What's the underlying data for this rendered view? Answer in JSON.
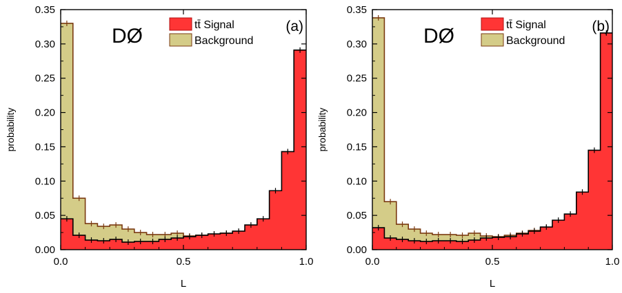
{
  "chart_data": [
    {
      "type": "histogram",
      "panel_label": "(a)",
      "watermark": "DØ",
      "xlabel": "L",
      "ylabel": "probability",
      "xlim": [
        0.0,
        1.0
      ],
      "ylim": [
        0.0,
        0.35
      ],
      "xticks": [
        "0.0",
        "0.5",
        "1.0"
      ],
      "yticks": [
        "0.00",
        "0.05",
        "0.10",
        "0.15",
        "0.20",
        "0.25",
        "0.30",
        "0.35"
      ],
      "bin_width": 0.05,
      "legend": {
        "position": "top-right",
        "entries": [
          "tt̄ Signal",
          "Background"
        ]
      },
      "series": [
        {
          "name": "Background",
          "color": "#d4cc88",
          "edge_color": "#7a3a10",
          "values": [
            0.33,
            0.075,
            0.038,
            0.034,
            0.036,
            0.03,
            0.025,
            0.022,
            0.022,
            0.024,
            0.02,
            0.021,
            0.022,
            0.024,
            0.026,
            0.029,
            0.032,
            0.038,
            0.039,
            0.037
          ]
        },
        {
          "name": "tt̄ Signal",
          "color": "#ff3535",
          "edge_color": "#000000",
          "values": [
            0.045,
            0.021,
            0.014,
            0.013,
            0.015,
            0.011,
            0.012,
            0.012,
            0.015,
            0.017,
            0.019,
            0.021,
            0.023,
            0.024,
            0.027,
            0.036,
            0.045,
            0.086,
            0.143,
            0.291
          ]
        }
      ]
    },
    {
      "type": "histogram",
      "panel_label": "(b)",
      "watermark": "DØ",
      "xlabel": "L",
      "ylabel": "probability",
      "xlim": [
        0.0,
        1.0
      ],
      "ylim": [
        0.0,
        0.35
      ],
      "xticks": [
        "0.0",
        "0.5",
        "1.0"
      ],
      "yticks": [
        "0.00",
        "0.05",
        "0.10",
        "0.15",
        "0.20",
        "0.25",
        "0.30",
        "0.35"
      ],
      "bin_width": 0.05,
      "legend": {
        "position": "top-right",
        "entries": [
          "tt̄ Signal",
          "Background"
        ]
      },
      "series": [
        {
          "name": "Background",
          "color": "#d4cc88",
          "edge_color": "#7a3a10",
          "values": [
            0.338,
            0.07,
            0.037,
            0.03,
            0.024,
            0.022,
            0.022,
            0.021,
            0.024,
            0.02,
            0.019,
            0.021,
            0.024,
            0.028,
            0.032,
            0.035,
            0.04,
            0.04,
            0.046,
            0.038
          ]
        },
        {
          "name": "tt̄ Signal",
          "color": "#ff3535",
          "edge_color": "#000000",
          "values": [
            0.032,
            0.017,
            0.015,
            0.013,
            0.012,
            0.013,
            0.013,
            0.012,
            0.014,
            0.017,
            0.018,
            0.019,
            0.023,
            0.027,
            0.033,
            0.043,
            0.052,
            0.084,
            0.145,
            0.316
          ]
        }
      ]
    }
  ]
}
